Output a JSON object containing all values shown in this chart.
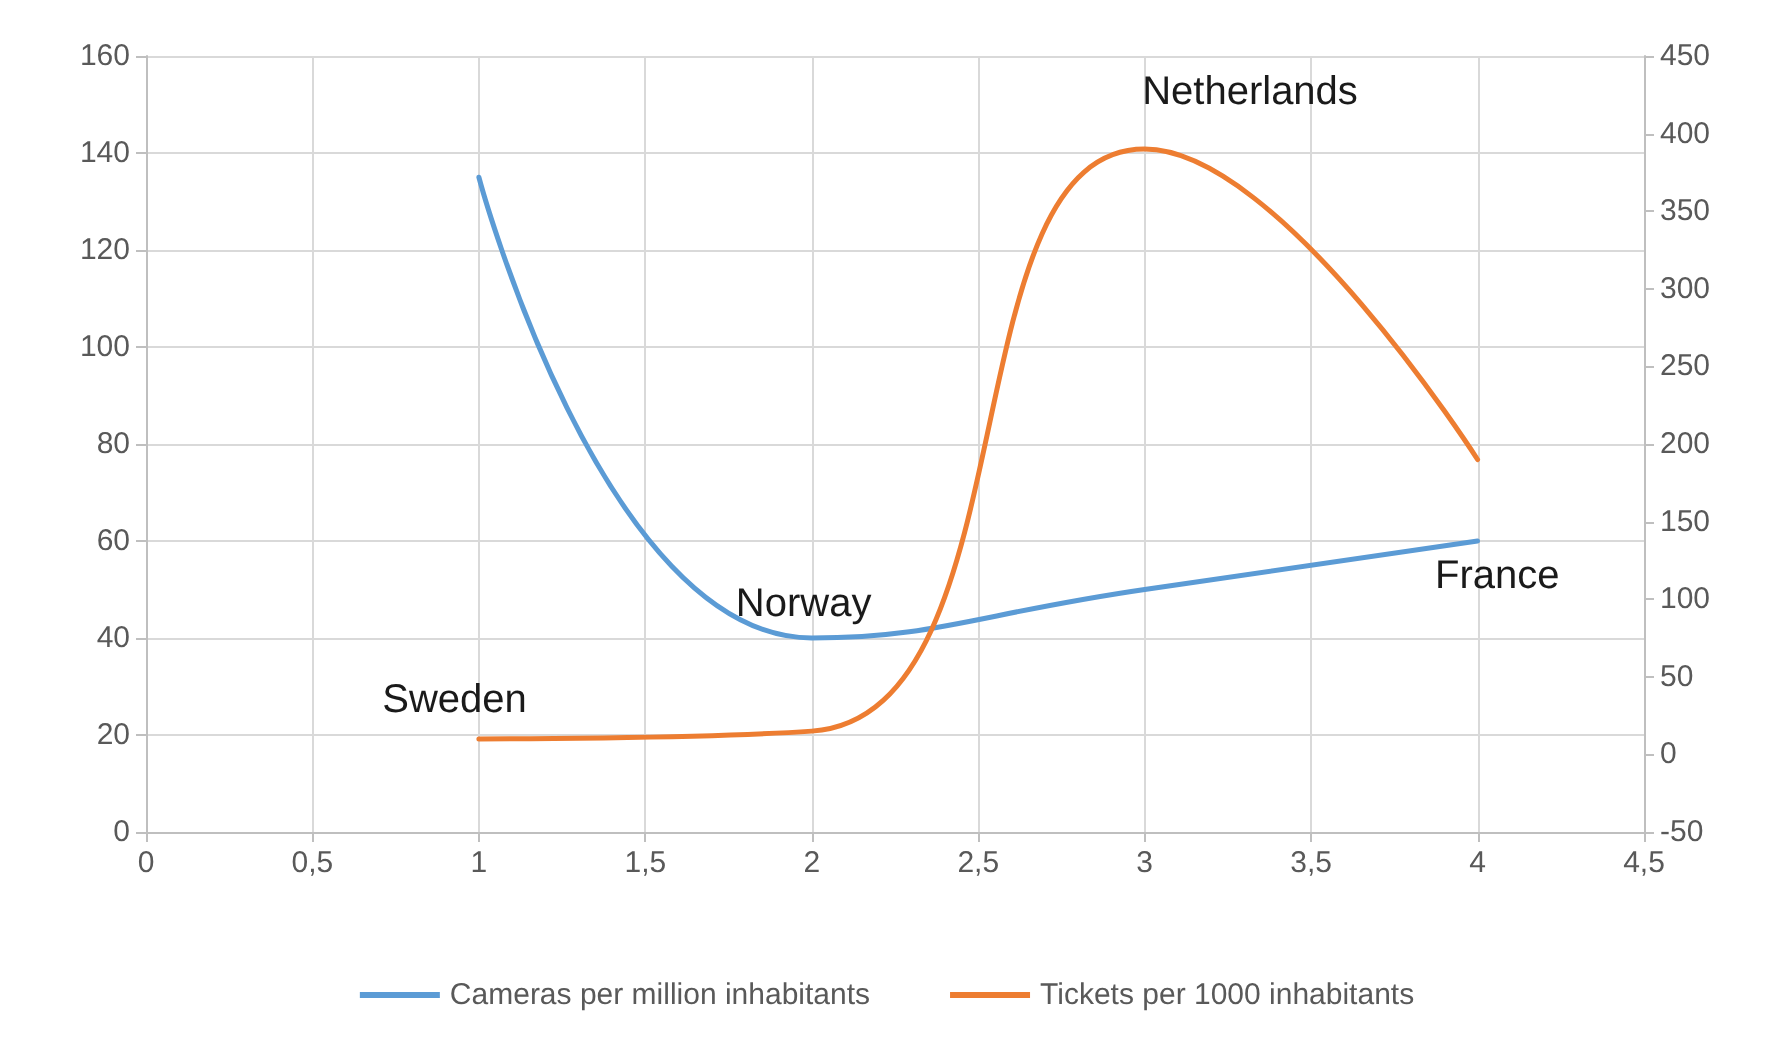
{
  "chart_data": {
    "type": "line",
    "x": [
      1,
      2,
      3,
      4
    ],
    "series": [
      {
        "name": "Cameras per million inhabitants",
        "color": "#5b9bd5",
        "values": [
          135,
          40,
          50,
          60
        ]
      },
      {
        "name": "Tickets per 1000 inhabitants",
        "color": "#ed7d31",
        "values": [
          10,
          15,
          390,
          190
        ],
        "axis": "y2"
      }
    ],
    "annotations": [
      "Sweden",
      "Norway",
      "Netherlands",
      "France"
    ],
    "xlim": [
      0,
      4.5
    ],
    "xticks": [
      0,
      {
        "value": 0.5,
        "label": "0,5"
      },
      1,
      {
        "value": 1.5,
        "label": "1,5"
      },
      2,
      {
        "value": 2.5,
        "label": "2,5"
      },
      3,
      {
        "value": 3.5,
        "label": "3,5"
      },
      4,
      {
        "value": 4.5,
        "label": "4,5"
      }
    ],
    "ylim": [
      0,
      160
    ],
    "yticks": [
      0,
      20,
      40,
      60,
      80,
      100,
      120,
      140,
      160
    ],
    "y2lim": [
      -50,
      450
    ],
    "y2ticks": [
      -50,
      0,
      50,
      100,
      150,
      200,
      250,
      300,
      350,
      400,
      450
    ],
    "grid": true,
    "legend": "bottom",
    "marker": "none",
    "line_style": "solid"
  }
}
